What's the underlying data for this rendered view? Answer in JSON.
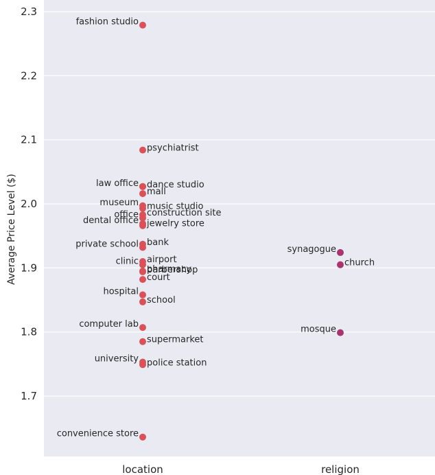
{
  "chart_data": {
    "type": "scatter",
    "title": "",
    "xlabel": "",
    "ylabel": "Average Price Level ($)",
    "ylim": [
      1.6,
      2.3
    ],
    "yticks": [
      "1.7",
      "1.8",
      "1.9",
      "2.0",
      "2.1",
      "2.2",
      "2.3"
    ],
    "ytick_values": [
      1.7,
      1.8,
      1.9,
      2.0,
      2.1,
      2.2,
      2.3
    ],
    "categories": [
      "location",
      "religion"
    ],
    "grid": true,
    "background": "#eaeaf2",
    "series": [
      {
        "category": "location",
        "color": "#d9525a",
        "points": [
          {
            "label": "fashion studio",
            "y": 2.279,
            "side": "left"
          },
          {
            "label": "psychiatrist",
            "y": 2.084,
            "side": "right"
          },
          {
            "label": "dance studio",
            "y": 2.027,
            "side": "right"
          },
          {
            "label": "law office",
            "y": 2.027,
            "side": "left"
          },
          {
            "label": "mall",
            "y": 2.016,
            "side": "right"
          },
          {
            "label": "museum",
            "y": 1.997,
            "side": "left"
          },
          {
            "label": "music studio",
            "y": 1.993,
            "side": "right"
          },
          {
            "label": "construction site",
            "y": 1.983,
            "side": "right"
          },
          {
            "label": "office",
            "y": 1.978,
            "side": "left"
          },
          {
            "label": "dental office",
            "y": 1.969,
            "side": "left"
          },
          {
            "label": "jewelry store",
            "y": 1.966,
            "side": "right"
          },
          {
            "label": "bank",
            "y": 1.937,
            "side": "right"
          },
          {
            "label": "private school",
            "y": 1.932,
            "side": "left"
          },
          {
            "label": "airport",
            "y": 1.91,
            "side": "right"
          },
          {
            "label": "clinic",
            "y": 1.905,
            "side": "left"
          },
          {
            "label": "pharmacy",
            "y": 1.895,
            "side": "right"
          },
          {
            "label": "barbershop",
            "y": 1.894,
            "side": "right"
          },
          {
            "label": "court",
            "y": 1.882,
            "side": "right"
          },
          {
            "label": "hospital",
            "y": 1.858,
            "side": "left"
          },
          {
            "label": "school",
            "y": 1.847,
            "side": "right"
          },
          {
            "label": "computer lab",
            "y": 1.807,
            "side": "left"
          },
          {
            "label": "supermarket",
            "y": 1.785,
            "side": "right"
          },
          {
            "label": "university",
            "y": 1.753,
            "side": "left"
          },
          {
            "label": "police station",
            "y": 1.749,
            "side": "right"
          },
          {
            "label": "convenience store",
            "y": 1.636,
            "side": "left"
          }
        ]
      },
      {
        "category": "religion",
        "color": "#a8356e",
        "points": [
          {
            "label": "synagogue",
            "y": 1.924,
            "side": "left"
          },
          {
            "label": "church",
            "y": 1.905,
            "side": "right"
          },
          {
            "label": "mosque",
            "y": 1.799,
            "side": "left"
          }
        ]
      }
    ]
  }
}
